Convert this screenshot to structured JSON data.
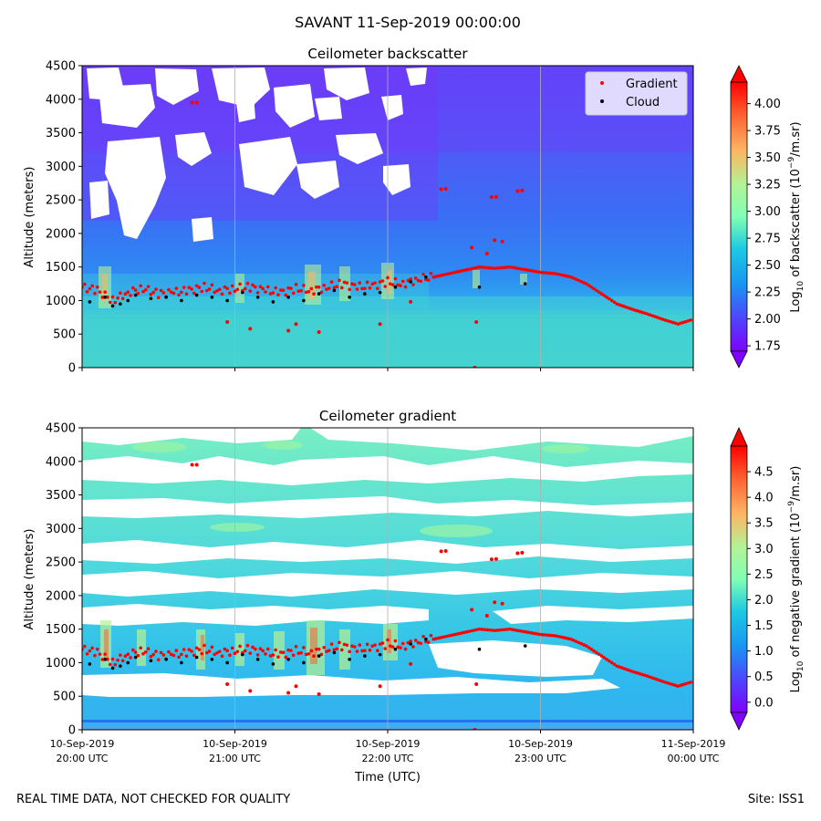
{
  "figure": {
    "suptitle": "SAVANT 11-Sep-2019 00:00:00",
    "footer_left": "REAL TIME DATA, NOT CHECKED FOR QUALITY",
    "footer_right": "Site: ISS1",
    "xlabel": "Time (UTC)"
  },
  "colors": {
    "gradient_marker": "#ff0000",
    "cloud_marker": "#000000",
    "grid": "#b0b0b0"
  },
  "chart_data": [
    {
      "type": "heatmap",
      "title": "Ceilometer backscatter",
      "ylabel": "Altitude (meters)",
      "ylim": [
        0,
        4500
      ],
      "yticks": [
        0,
        500,
        1000,
        1500,
        2000,
        2500,
        3000,
        3500,
        4000,
        4500
      ],
      "xlim_hours": [
        20,
        24
      ],
      "xticks": [
        {
          "hour": 20,
          "line1": "10-Sep-2019",
          "line2": "20:00 UTC"
        },
        {
          "hour": 21,
          "line1": "10-Sep-2019",
          "line2": "21:00 UTC"
        },
        {
          "hour": 22,
          "line1": "10-Sep-2019",
          "line2": "22:00 UTC"
        },
        {
          "hour": 23,
          "line1": "10-Sep-2019",
          "line2": "23:00 UTC"
        },
        {
          "hour": 24,
          "line1": "11-Sep-2019",
          "line2": "00:00 UTC"
        }
      ],
      "show_xtick_labels": false,
      "grid": "vertical",
      "colorbar": {
        "label_pre": "Log",
        "label_sub": "10",
        "label_mid": " of backscatter (10",
        "label_sup": "−9",
        "label_post": "/m.sr)",
        "vmin": 1.7,
        "vmax": 4.2,
        "ticks": [
          "1.75",
          "2.00",
          "2.25",
          "2.50",
          "2.75",
          "3.00",
          "3.25",
          "3.50",
          "3.75",
          "4.00"
        ],
        "extend": "both"
      },
      "legend": {
        "placement": "top-right",
        "entries": [
          {
            "label": "Gradient",
            "color": "#ff0000"
          },
          {
            "label": "Cloud",
            "color": "#000000"
          }
        ]
      }
    },
    {
      "type": "heatmap",
      "title": "Ceilometer gradient",
      "ylabel": "Altitude (meters)",
      "ylim": [
        0,
        4500
      ],
      "yticks": [
        0,
        500,
        1000,
        1500,
        2000,
        2500,
        3000,
        3500,
        4000,
        4500
      ],
      "xlim_hours": [
        20,
        24
      ],
      "xticks": [
        {
          "hour": 20,
          "line1": "10-Sep-2019",
          "line2": "20:00 UTC"
        },
        {
          "hour": 21,
          "line1": "10-Sep-2019",
          "line2": "21:00 UTC"
        },
        {
          "hour": 22,
          "line1": "10-Sep-2019",
          "line2": "22:00 UTC"
        },
        {
          "hour": 23,
          "line1": "10-Sep-2019",
          "line2": "23:00 UTC"
        },
        {
          "hour": 24,
          "line1": "11-Sep-2019",
          "line2": "00:00 UTC"
        }
      ],
      "show_xtick_labels": true,
      "grid": "vertical",
      "colorbar": {
        "label_pre": "Log",
        "label_sub": "10",
        "label_mid": " of negative gradient (10",
        "label_sup": "−9",
        "label_post": "/m.sr)",
        "vmin": -0.2,
        "vmax": 5.0,
        "ticks": [
          "0.0",
          "0.5",
          "1.0",
          "1.5",
          "2.0",
          "2.5",
          "3.0",
          "3.5",
          "4.0",
          "4.5"
        ],
        "extend": "both"
      }
    }
  ],
  "series": {
    "gradient_track": {
      "name": "Gradient",
      "hours": [
        20.0,
        20.1,
        20.2,
        20.3,
        20.4,
        20.5,
        20.6,
        20.7,
        20.8,
        20.9,
        21.0,
        21.1,
        21.2,
        21.3,
        21.4,
        21.5,
        21.6,
        21.7,
        21.8,
        21.9,
        22.0,
        22.1,
        22.2,
        22.3,
        22.4,
        22.5,
        22.6,
        22.7,
        22.8,
        22.9,
        23.0,
        23.1,
        23.2,
        23.3,
        23.4,
        23.5,
        23.6,
        23.7,
        23.8,
        23.9,
        24.0
      ],
      "altitudes": [
        1200,
        1150,
        1000,
        1120,
        1180,
        1100,
        1120,
        1150,
        1200,
        1150,
        1180,
        1200,
        1150,
        1120,
        1180,
        1150,
        1200,
        1250,
        1200,
        1220,
        1280,
        1250,
        1320,
        1350,
        1400,
        1450,
        1500,
        1480,
        1500,
        1460,
        1420,
        1400,
        1350,
        1250,
        1100,
        950,
        870,
        800,
        720,
        650,
        720
      ]
    },
    "gradient_scatter": {
      "name": "Gradient outliers",
      "points": [
        [
          20.72,
          3950
        ],
        [
          20.75,
          3950
        ],
        [
          22.35,
          2660
        ],
        [
          22.38,
          2665
        ],
        [
          22.68,
          2540
        ],
        [
          22.71,
          2545
        ],
        [
          22.85,
          2630
        ],
        [
          22.88,
          2640
        ],
        [
          22.7,
          1900
        ],
        [
          22.75,
          1880
        ],
        [
          22.55,
          1790
        ],
        [
          22.58,
          680
        ],
        [
          22.57,
          0
        ],
        [
          21.55,
          530
        ],
        [
          21.35,
          550
        ],
        [
          21.1,
          580
        ],
        [
          20.95,
          680
        ],
        [
          21.4,
          650
        ],
        [
          21.95,
          650
        ],
        [
          22.15,
          980
        ],
        [
          22.65,
          1700
        ]
      ]
    },
    "cloud_points": {
      "name": "Cloud",
      "hours": [
        20.05,
        20.15,
        20.2,
        20.25,
        20.3,
        20.35,
        20.45,
        20.55,
        20.65,
        20.75,
        20.85,
        20.95,
        21.05,
        21.15,
        21.25,
        21.35,
        21.45,
        21.55,
        21.65,
        21.75,
        21.85,
        21.95,
        22.05,
        22.15,
        22.25,
        22.6,
        22.9
      ],
      "altitudes": [
        980,
        1050,
        920,
        950,
        1000,
        1080,
        1030,
        1050,
        1000,
        1080,
        1050,
        1000,
        1120,
        1050,
        980,
        1050,
        1000,
        1100,
        1150,
        1050,
        1100,
        1120,
        1200,
        1280,
        1350,
        1200,
        1250
      ]
    }
  }
}
